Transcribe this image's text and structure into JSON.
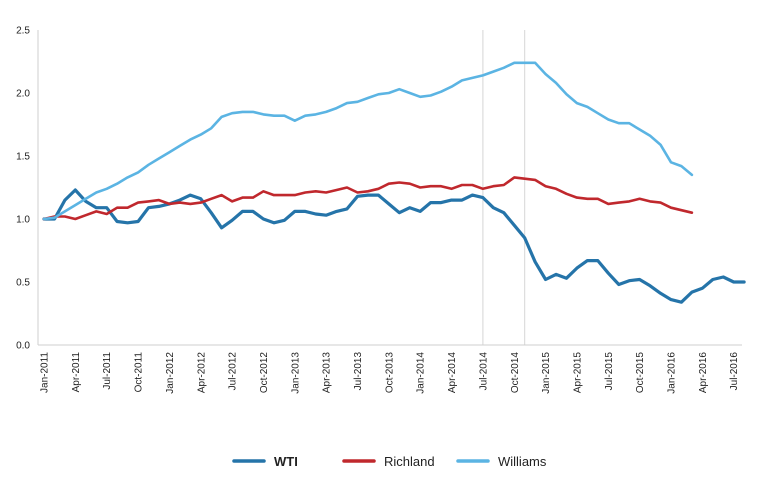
{
  "chart_data": {
    "type": "line",
    "title": "",
    "xlabel": "",
    "ylabel": "",
    "ylim": [
      0,
      2.5
    ],
    "yticks": [
      "0.0",
      "0.5",
      "1.0",
      "1.5",
      "2.0",
      "2.5"
    ],
    "xticks": [
      "Jan-2011",
      "Apr-2011",
      "Jul-2011",
      "Oct-2011",
      "Jan-2012",
      "Apr-2012",
      "Jul-2012",
      "Oct-2012",
      "Jan-2013",
      "Apr-2013",
      "Jul-2013",
      "Oct-2013",
      "Jan-2014",
      "Apr-2014",
      "Jul-2014",
      "Oct-2014",
      "Jan-2015",
      "Apr-2015",
      "Jul-2015",
      "Oct-2015",
      "Jan-2016",
      "Apr-2016",
      "Jul-2016"
    ],
    "x_start": "Jan-2011",
    "x_step": "month",
    "vertical_markers": [
      "Jul-2014",
      "Nov-2014"
    ],
    "grid": false,
    "legend_position": "bottom-center",
    "series": [
      {
        "name": "WTI",
        "color": "#2574a9",
        "values": [
          1.0,
          1.0,
          1.15,
          1.23,
          1.14,
          1.09,
          1.09,
          0.98,
          0.97,
          0.98,
          1.09,
          1.1,
          1.12,
          1.15,
          1.19,
          1.16,
          1.05,
          0.93,
          0.99,
          1.06,
          1.06,
          1.0,
          0.97,
          0.99,
          1.06,
          1.06,
          1.04,
          1.03,
          1.06,
          1.08,
          1.18,
          1.19,
          1.19,
          1.12,
          1.05,
          1.09,
          1.06,
          1.13,
          1.13,
          1.15,
          1.15,
          1.19,
          1.17,
          1.09,
          1.05,
          0.95,
          0.85,
          0.66,
          0.52,
          0.56,
          0.53,
          0.61,
          0.67,
          0.67,
          0.57,
          0.48,
          0.51,
          0.52,
          0.47,
          0.41,
          0.36,
          0.34,
          0.42,
          0.45,
          0.52,
          0.54,
          0.5,
          0.5
        ]
      },
      {
        "name": "Richland",
        "color": "#c0282d",
        "values": [
          1.0,
          1.02,
          1.02,
          1.0,
          1.03,
          1.06,
          1.04,
          1.09,
          1.09,
          1.13,
          1.14,
          1.15,
          1.12,
          1.13,
          1.12,
          1.13,
          1.16,
          1.19,
          1.14,
          1.17,
          1.17,
          1.22,
          1.19,
          1.19,
          1.19,
          1.21,
          1.22,
          1.21,
          1.23,
          1.25,
          1.21,
          1.22,
          1.24,
          1.28,
          1.29,
          1.28,
          1.25,
          1.26,
          1.26,
          1.24,
          1.27,
          1.27,
          1.24,
          1.26,
          1.27,
          1.33,
          1.32,
          1.31,
          1.26,
          1.24,
          1.2,
          1.17,
          1.16,
          1.16,
          1.12,
          1.13,
          1.14,
          1.16,
          1.14,
          1.13,
          1.09,
          1.07,
          1.05
        ]
      },
      {
        "name": "Williams",
        "color": "#5bb4e3",
        "values": [
          1.0,
          1.01,
          1.06,
          1.11,
          1.16,
          1.21,
          1.24,
          1.28,
          1.33,
          1.37,
          1.43,
          1.48,
          1.53,
          1.58,
          1.63,
          1.67,
          1.72,
          1.81,
          1.84,
          1.85,
          1.85,
          1.83,
          1.82,
          1.82,
          1.78,
          1.82,
          1.83,
          1.85,
          1.88,
          1.92,
          1.93,
          1.96,
          1.99,
          2.0,
          2.03,
          2.0,
          1.97,
          1.98,
          2.01,
          2.05,
          2.1,
          2.12,
          2.14,
          2.17,
          2.2,
          2.24,
          2.24,
          2.24,
          2.15,
          2.08,
          1.99,
          1.92,
          1.89,
          1.84,
          1.79,
          1.76,
          1.76,
          1.71,
          1.66,
          1.59,
          1.45,
          1.42,
          1.35
        ]
      }
    ]
  }
}
